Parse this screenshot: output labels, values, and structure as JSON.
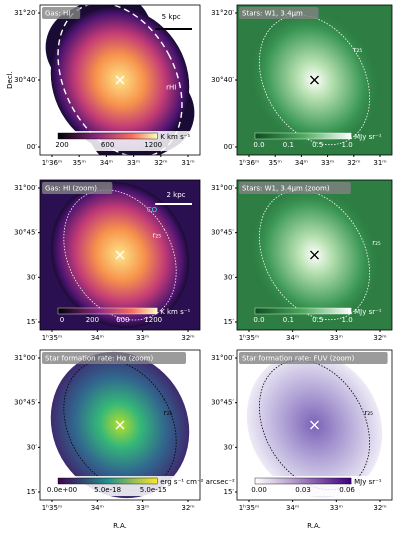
{
  "ylabel": "Decl.",
  "xlabels": [
    "R.A.",
    "R.A."
  ],
  "panels": [
    {
      "title": "Gas: HI",
      "yticks": [
        "31°20′",
        "30°40′",
        "00′"
      ],
      "xticks": [
        "1ʰ36ᵐ",
        "35ᵐ",
        "34ᵐ",
        "33ᵐ",
        "32ᵐ",
        "31ᵐ"
      ],
      "annotations": [
        "5 kpc",
        "rHI"
      ],
      "colorbar": {
        "ticks": [
          "200",
          "600",
          "1200"
        ],
        "unit": "K km s⁻¹"
      }
    },
    {
      "title": "Stars: W1, 3.4μm",
      "yticks": [
        "31°20′",
        "30°40′",
        "00′"
      ],
      "xticks": [
        "1ʰ36ᵐ",
        "35ᵐ",
        "34ᵐ",
        "33ᵐ",
        "32ᵐ",
        "31ᵐ"
      ],
      "annotations": [
        "r₂₅"
      ],
      "colorbar": {
        "ticks": [
          "0.0",
          "0.1",
          "0.5",
          "1.0"
        ],
        "unit": "MJy sr⁻¹"
      }
    },
    {
      "title": "Gas: HI (zoom)",
      "yticks": [
        "31°00′",
        "30°45′",
        "30′",
        "15′"
      ],
      "xticks": [
        "1ʰ35ᵐ",
        "34ᵐ",
        "33ᵐ",
        "32ᵐ"
      ],
      "annotations": [
        "2 kpc",
        "CO",
        "r₂₅"
      ],
      "colorbar": {
        "ticks": [
          "0",
          "200",
          "600",
          "1200"
        ],
        "unit": "K km s⁻¹"
      }
    },
    {
      "title": "Stars: W1, 3.4μm (zoom)",
      "yticks": [
        "31°00′",
        "30°45′",
        "30′",
        "15′"
      ],
      "xticks": [
        "1ʰ35ᵐ",
        "34ᵐ",
        "33ᵐ",
        "32ᵐ"
      ],
      "annotations": [
        "r₂₅"
      ],
      "colorbar": {
        "ticks": [
          "0.0",
          "0.1",
          "0.5",
          "1.0"
        ],
        "unit": "MJy sr⁻¹"
      }
    },
    {
      "title": "Star formation rate: Hα (zoom)",
      "yticks": [
        "31°00′",
        "30°45′",
        "30′",
        "15′"
      ],
      "xticks": [
        "1ʰ35ᵐ",
        "34ᵐ",
        "33ᵐ",
        "32ᵐ"
      ],
      "annotations": [
        "r₂₅"
      ],
      "colorbar": {
        "ticks": [
          "0.0e+00",
          "5.0e-18",
          "5.0e-15"
        ],
        "unit": "erg s⁻¹ cm⁻² arcsec⁻²"
      }
    },
    {
      "title": "Star formation rate: FUV (zoom)",
      "yticks": [
        "31°00′",
        "30°45′",
        "30′",
        "15′"
      ],
      "xticks": [
        "1ʰ35ᵐ",
        "34ᵐ",
        "33ᵐ",
        "32ᵐ"
      ],
      "annotations": [
        "r₂₅"
      ],
      "colorbar": {
        "ticks": [
          "0.00",
          "0.03",
          "0.06"
        ],
        "unit": "MJy sr⁻¹"
      }
    }
  ]
}
